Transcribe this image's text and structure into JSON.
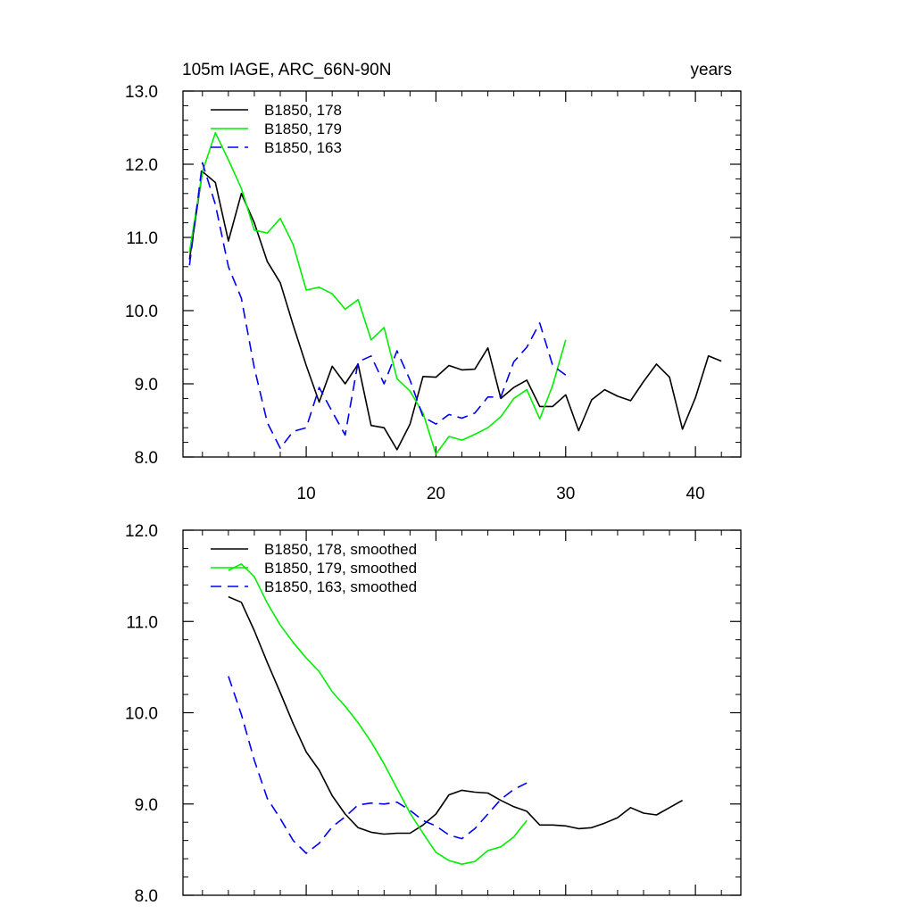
{
  "chart_data": [
    {
      "type": "line",
      "title": "105m IAGE, ARC_66N-90N",
      "units": "years",
      "xlim": [
        0.5,
        43.5
      ],
      "ylim": [
        8.0,
        13.0
      ],
      "x_ticks": [
        10,
        20,
        30,
        40
      ],
      "x_tick_labels": [
        "10",
        "20",
        "30",
        "40"
      ],
      "y_ticks": [
        8.0,
        9.0,
        10.0,
        11.0,
        12.0,
        13.0
      ],
      "y_tick_labels": [
        "8.0",
        "9.0",
        "10.0",
        "11.0",
        "12.0",
        "13.0"
      ],
      "legend_position": "top-left",
      "series": [
        {
          "name": "B1850, 178",
          "color": "#000000",
          "dash": "solid",
          "x": [
            1,
            2,
            3,
            4,
            5,
            6,
            7,
            8,
            9,
            10,
            11,
            12,
            13,
            14,
            15,
            16,
            17,
            18,
            19,
            20,
            21,
            22,
            23,
            24,
            25,
            26,
            27,
            28,
            29,
            30,
            31,
            32,
            33,
            34,
            35,
            36,
            37,
            38,
            39,
            40,
            41,
            42
          ],
          "values": [
            10.7,
            11.9,
            11.75,
            10.95,
            11.6,
            11.2,
            10.67,
            10.38,
            9.8,
            9.25,
            8.75,
            9.24,
            9.0,
            9.27,
            8.43,
            8.4,
            8.1,
            8.45,
            9.1,
            9.09,
            9.25,
            9.19,
            9.2,
            9.49,
            8.8,
            8.95,
            9.05,
            8.69,
            8.69,
            8.85,
            8.36,
            8.78,
            8.92,
            8.83,
            8.77,
            9.03,
            9.27,
            9.09,
            8.38,
            8.81,
            9.38,
            9.31
          ]
        },
        {
          "name": "B1850, 179",
          "color": "#00ee00",
          "dash": "solid",
          "x": [
            1,
            2,
            3,
            4,
            5,
            6,
            7,
            8,
            9,
            10,
            11,
            12,
            13,
            14,
            15,
            16,
            17,
            18,
            19,
            20,
            21,
            22,
            23,
            24,
            25,
            26,
            27,
            28,
            29,
            30
          ],
          "values": [
            10.8,
            11.9,
            12.43,
            12.06,
            11.67,
            11.1,
            11.06,
            11.26,
            10.9,
            10.28,
            10.32,
            10.23,
            10.02,
            10.15,
            9.6,
            9.77,
            9.07,
            8.9,
            8.6,
            8.04,
            8.28,
            8.23,
            8.31,
            8.4,
            8.55,
            8.8,
            8.92,
            8.52,
            8.98,
            9.6
          ]
        },
        {
          "name": "B1850, 163",
          "color": "#0000ee",
          "dash": "dashed",
          "x": [
            1,
            2,
            3,
            4,
            5,
            6,
            7,
            8,
            9,
            10,
            11,
            12,
            13,
            14,
            15,
            16,
            17,
            18,
            19,
            20,
            21,
            22,
            23,
            24,
            25,
            26,
            27,
            28,
            29,
            30
          ],
          "values": [
            10.62,
            12.02,
            11.45,
            10.6,
            10.17,
            9.22,
            8.47,
            8.12,
            8.35,
            8.4,
            8.95,
            8.62,
            8.3,
            9.3,
            9.38,
            9.0,
            9.45,
            9.05,
            8.55,
            8.45,
            8.58,
            8.53,
            8.6,
            8.82,
            8.82,
            9.3,
            9.5,
            9.83,
            9.25,
            9.12
          ]
        }
      ]
    },
    {
      "type": "line",
      "title": "",
      "xlim": [
        0.5,
        43.5
      ],
      "ylim": [
        8.0,
        12.0
      ],
      "x_ticks": [
        10,
        20,
        30,
        40
      ],
      "x_tick_labels": [],
      "y_ticks": [
        8.0,
        9.0,
        10.0,
        11.0,
        12.0
      ],
      "y_tick_labels": [
        "8.0",
        "9.0",
        "10.0",
        "11.0",
        "12.0"
      ],
      "legend_position": "top-left",
      "series": [
        {
          "name": "B1850, 178, smoothed",
          "color": "#000000",
          "dash": "solid",
          "x": [
            4,
            5,
            6,
            7,
            8,
            9,
            10,
            11,
            12,
            13,
            14,
            15,
            16,
            17,
            18,
            19,
            20,
            21,
            22,
            23,
            24,
            25,
            26,
            27,
            28,
            29,
            30,
            31,
            32,
            33,
            34,
            35,
            36,
            37,
            38,
            39
          ],
          "values": [
            11.27,
            11.21,
            10.9,
            10.55,
            10.22,
            9.88,
            9.57,
            9.37,
            9.09,
            8.89,
            8.74,
            8.69,
            8.67,
            8.68,
            8.68,
            8.77,
            8.89,
            9.1,
            9.15,
            9.13,
            9.12,
            9.04,
            8.97,
            8.92,
            8.77,
            8.77,
            8.76,
            8.73,
            8.74,
            8.79,
            8.85,
            8.96,
            8.9,
            8.88,
            8.96,
            9.04
          ]
        },
        {
          "name": "B1850, 179, smoothed",
          "color": "#00ee00",
          "dash": "solid",
          "x": [
            4,
            5,
            6,
            7,
            8,
            9,
            10,
            11,
            12,
            13,
            14,
            15,
            16,
            17,
            18,
            19,
            20,
            21,
            22,
            23,
            24,
            25,
            26,
            27
          ],
          "values": [
            11.56,
            11.63,
            11.49,
            11.2,
            10.96,
            10.77,
            10.6,
            10.45,
            10.23,
            10.07,
            9.89,
            9.68,
            9.44,
            9.17,
            8.9,
            8.68,
            8.47,
            8.38,
            8.34,
            8.37,
            8.49,
            8.53,
            8.64,
            8.82
          ]
        },
        {
          "name": "B1850, 163, smoothed",
          "color": "#0000ee",
          "dash": "dashed",
          "x": [
            4,
            5,
            6,
            7,
            8,
            9,
            10,
            11,
            12,
            13,
            14,
            15,
            16,
            17,
            18,
            19,
            20,
            21,
            22,
            23,
            24,
            25,
            26,
            27
          ],
          "values": [
            10.4,
            9.98,
            9.48,
            9.06,
            8.84,
            8.6,
            8.46,
            8.57,
            8.75,
            8.86,
            8.99,
            9.01,
            9.0,
            9.02,
            8.93,
            8.82,
            8.76,
            8.66,
            8.62,
            8.73,
            8.89,
            9.05,
            9.16,
            9.23
          ]
        }
      ]
    }
  ]
}
